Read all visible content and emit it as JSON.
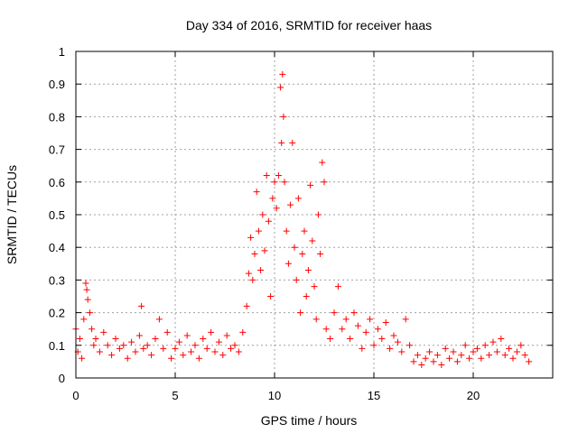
{
  "chart_data": {
    "type": "scatter",
    "title": "Day 334 of 2016, SRMTID for receiver haas",
    "xlabel": "GPS time / hours",
    "ylabel": "SRMTID / TECUs",
    "xlim": [
      0,
      24
    ],
    "ylim": [
      0,
      1
    ],
    "xticks": [
      0,
      5,
      10,
      15,
      20
    ],
    "xtick_labels": [
      "0",
      "5",
      "10",
      "15",
      "20"
    ],
    "yticks": [
      0,
      0.1,
      0.2,
      0.3,
      0.4,
      0.5,
      0.6,
      0.7,
      0.8,
      0.9,
      1
    ],
    "ytick_labels": [
      "0",
      "0.1",
      "0.2",
      "0.3",
      "0.4",
      "0.5",
      "0.6",
      "0.7",
      "0.8",
      "0.9",
      "1"
    ],
    "grid": true,
    "marker": "+",
    "color": "#ff0000",
    "series": [
      {
        "name": "SRMTID",
        "x": [
          0.0,
          0.1,
          0.2,
          0.3,
          0.4,
          0.5,
          0.55,
          0.6,
          0.7,
          0.8,
          0.9,
          1.0,
          1.2,
          1.4,
          1.6,
          1.8,
          2.0,
          2.2,
          2.4,
          2.6,
          2.8,
          3.0,
          3.2,
          3.3,
          3.4,
          3.6,
          3.8,
          4.0,
          4.2,
          4.4,
          4.6,
          4.8,
          5.0,
          5.2,
          5.4,
          5.6,
          5.8,
          6.0,
          6.2,
          6.4,
          6.6,
          6.8,
          7.0,
          7.2,
          7.4,
          7.6,
          7.8,
          8.0,
          8.2,
          8.4,
          8.6,
          8.7,
          8.8,
          8.9,
          9.0,
          9.1,
          9.2,
          9.3,
          9.4,
          9.5,
          9.6,
          9.7,
          9.8,
          9.9,
          10.0,
          10.1,
          10.2,
          10.3,
          10.35,
          10.4,
          10.45,
          10.5,
          10.6,
          10.7,
          10.8,
          10.9,
          11.0,
          11.1,
          11.2,
          11.3,
          11.4,
          11.5,
          11.6,
          11.7,
          11.8,
          11.9,
          12.0,
          12.1,
          12.2,
          12.3,
          12.4,
          12.5,
          12.6,
          12.8,
          13.0,
          13.2,
          13.4,
          13.6,
          13.8,
          14.0,
          14.2,
          14.4,
          14.6,
          14.8,
          15.0,
          15.2,
          15.4,
          15.6,
          15.8,
          16.0,
          16.2,
          16.4,
          16.6,
          16.8,
          17.0,
          17.2,
          17.4,
          17.6,
          17.8,
          18.0,
          18.2,
          18.4,
          18.6,
          18.8,
          19.0,
          19.2,
          19.4,
          19.6,
          19.8,
          20.0,
          20.2,
          20.4,
          20.6,
          20.8,
          21.0,
          21.2,
          21.4,
          21.6,
          21.8,
          22.0,
          22.2,
          22.4,
          22.6,
          22.8
        ],
        "y": [
          0.15,
          0.08,
          0.12,
          0.06,
          0.18,
          0.29,
          0.27,
          0.24,
          0.2,
          0.15,
          0.1,
          0.12,
          0.08,
          0.14,
          0.1,
          0.07,
          0.12,
          0.09,
          0.1,
          0.06,
          0.11,
          0.08,
          0.13,
          0.22,
          0.09,
          0.1,
          0.07,
          0.12,
          0.18,
          0.09,
          0.14,
          0.06,
          0.09,
          0.11,
          0.07,
          0.13,
          0.08,
          0.1,
          0.06,
          0.12,
          0.09,
          0.14,
          0.08,
          0.11,
          0.07,
          0.13,
          0.09,
          0.1,
          0.08,
          0.14,
          0.22,
          0.32,
          0.43,
          0.3,
          0.38,
          0.57,
          0.45,
          0.33,
          0.5,
          0.39,
          0.62,
          0.48,
          0.25,
          0.55,
          0.6,
          0.52,
          0.62,
          0.89,
          0.72,
          0.93,
          0.8,
          0.6,
          0.45,
          0.35,
          0.53,
          0.72,
          0.4,
          0.3,
          0.55,
          0.2,
          0.38,
          0.45,
          0.25,
          0.33,
          0.59,
          0.42,
          0.28,
          0.18,
          0.5,
          0.38,
          0.66,
          0.6,
          0.15,
          0.12,
          0.2,
          0.28,
          0.15,
          0.18,
          0.12,
          0.2,
          0.16,
          0.09,
          0.14,
          0.18,
          0.1,
          0.15,
          0.12,
          0.17,
          0.09,
          0.13,
          0.11,
          0.08,
          0.18,
          0.1,
          0.05,
          0.07,
          0.04,
          0.06,
          0.08,
          0.05,
          0.07,
          0.04,
          0.09,
          0.06,
          0.08,
          0.05,
          0.07,
          0.1,
          0.06,
          0.08,
          0.09,
          0.06,
          0.1,
          0.07,
          0.11,
          0.08,
          0.12,
          0.07,
          0.09,
          0.06,
          0.08,
          0.1,
          0.07,
          0.05
        ]
      }
    ]
  }
}
